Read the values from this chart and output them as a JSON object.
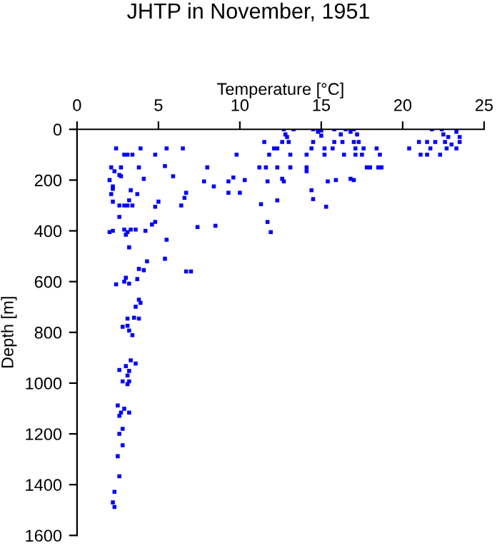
{
  "chart_data": {
    "type": "scatter",
    "title": "JHTP in November, 1951",
    "xlabel": "Temperature [°C]",
    "ylabel": "Depth [m]",
    "xlim": [
      0,
      25
    ],
    "ylim": [
      1600,
      0
    ],
    "xticks": [
      0,
      5,
      10,
      15,
      20,
      25
    ],
    "yticks": [
      0,
      200,
      400,
      600,
      800,
      1000,
      1200,
      1400,
      1600
    ],
    "grid": false,
    "marker": "square",
    "series": [
      {
        "color": "#0000ff",
        "x": [
          12.7,
          12.8,
          12.9,
          13,
          12.6,
          13.3,
          11.5,
          14.5,
          14.8,
          15,
          14.5,
          15,
          15.8,
          16.2,
          16.5,
          16.8,
          16.3,
          15.8,
          17,
          17.2,
          17.3,
          17,
          21.8,
          21.5,
          22,
          22.4,
          22.5,
          22.8,
          22.6,
          23.3,
          23.5,
          23.5,
          23,
          2.4,
          2.9,
          3.1,
          3.4,
          3.9,
          4.8,
          5.5,
          6.5,
          9.8,
          11.8,
          12.1,
          12.3,
          13.1,
          14.1,
          14.4,
          15.2,
          15.2,
          15.7,
          16.4,
          17.1,
          17.1,
          17.6,
          17.5,
          18.4,
          18.6,
          20.4,
          21,
          21.1,
          21.5,
          21.7,
          22.3,
          22.7,
          23.3,
          2.1,
          2.7,
          3.8,
          5.4,
          8,
          11.2,
          11.6,
          12.3,
          13.1,
          14.1,
          14.1,
          17.8,
          18.0,
          18.5,
          18.7,
          2.3,
          2.6,
          2.7,
          4.1,
          5.9,
          7.8,
          8.4,
          9.3,
          9.6,
          10.3,
          11.7,
          12.6,
          12.7,
          15.4,
          15.9,
          16.8,
          17.0,
          2.0,
          2.2,
          2.2,
          2.1,
          3.3,
          3.7,
          9.3,
          10.0,
          6.7,
          6.6,
          12.3,
          14.5,
          14.4,
          2.2,
          3.2,
          5.0,
          4.8,
          6.4,
          11.3,
          15.3,
          2.6,
          2.9,
          3.1,
          3.4,
          2.6,
          4.6,
          4.8,
          7.4,
          8.5,
          11.7,
          11.9,
          4.2,
          2.0,
          2.2,
          2.9,
          3.1,
          3.3,
          3.6,
          3.0,
          3.2,
          5.5,
          5.4,
          4.3,
          3.8,
          4.1,
          6.7,
          7.0,
          2.4,
          3.0,
          2.9,
          3.2,
          3.7,
          3.8,
          3.9,
          3.6,
          3.1,
          3.5,
          3.8,
          2.8,
          3.1,
          3.2,
          3.4,
          3.3,
          3.6,
          3.0,
          2.6,
          3.2,
          3.1,
          2.8,
          3.2,
          3.1,
          2.5,
          2.9,
          2.7,
          3.2,
          2.6,
          2.8,
          2.6,
          2.8,
          2.5,
          2.6,
          2.3,
          2.2,
          2.3
        ],
        "values": [
          0,
          20,
          30,
          50,
          50,
          0,
          50,
          0,
          10,
          25,
          50,
          5,
          0,
          20,
          0,
          10,
          50,
          50,
          0,
          20,
          50,
          50,
          0,
          50,
          50,
          0,
          20,
          30,
          50,
          10,
          30,
          50,
          60,
          75,
          100,
          100,
          100,
          75,
          100,
          75,
          75,
          100,
          100,
          75,
          75,
          100,
          100,
          75,
          75,
          100,
          75,
          100,
          75,
          100,
          75,
          100,
          75,
          100,
          75,
          50,
          100,
          100,
          75,
          100,
          75,
          75,
          150,
          150,
          150,
          145,
          150,
          150,
          150,
          150,
          150,
          150,
          165,
          150,
          150,
          150,
          150,
          165,
          180,
          185,
          195,
          185,
          205,
          225,
          205,
          190,
          200,
          205,
          195,
          205,
          205,
          200,
          195,
          200,
          200,
          225,
          235,
          255,
          240,
          255,
          250,
          250,
          250,
          270,
          280,
          275,
          240,
          285,
          280,
          285,
          305,
          300,
          295,
          305,
          300,
          300,
          300,
          300,
          345,
          375,
          365,
          385,
          380,
          365,
          405,
          400,
          405,
          400,
          395,
          405,
          395,
          395,
          415,
          465,
          435,
          510,
          520,
          550,
          555,
          560,
          560,
          611,
          585,
          600,
          608,
          590,
          671,
          684,
          699,
          746,
          742,
          746,
          778,
          774,
          793,
          811,
          910,
          923,
          933,
          948,
          952,
          970,
          993,
          993,
          1004,
          1088,
          1101,
          1116,
          1116,
          1129,
          1180,
          1200,
          1245,
          1288,
          1367,
          1428,
          1470,
          1488
        ]
      }
    ]
  }
}
